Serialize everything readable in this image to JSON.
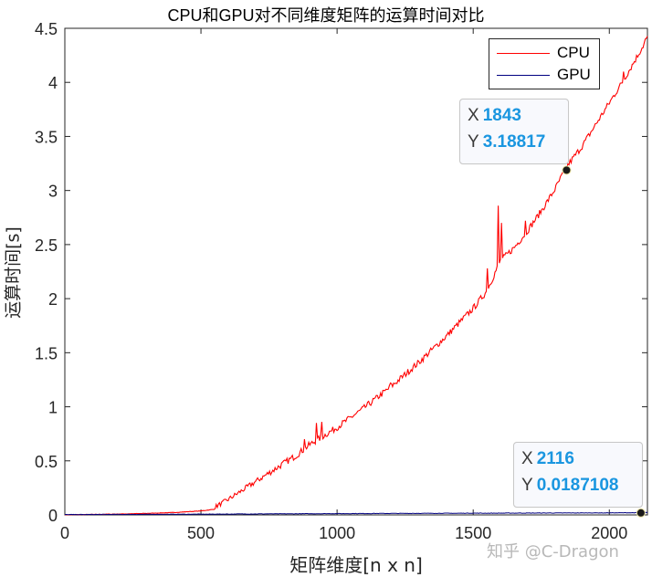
{
  "chart_data": {
    "type": "line",
    "title": "CPU和GPU对不同维度矩阵的运算时间对比",
    "xlabel": "矩阵维度[n x n]",
    "ylabel": "运算时间[s]",
    "xlim": [
      0,
      2140
    ],
    "ylim": [
      0,
      4.5
    ],
    "xticks": [
      0,
      500,
      1000,
      1500,
      2000
    ],
    "yticks": [
      0,
      0.5,
      1,
      1.5,
      2,
      2.5,
      3,
      3.5,
      4,
      4.5
    ],
    "xtick_labels": [
      "0",
      "500",
      "1000",
      "1500",
      "2000"
    ],
    "ytick_labels": [
      "0",
      "0.5",
      "1",
      "1.5",
      "2",
      "2.5",
      "3",
      "3.5",
      "4",
      "4.5"
    ],
    "grid": false,
    "legend_position": "upper right",
    "series": [
      {
        "name": "CPU",
        "color": "#ff0000",
        "x": [
          0,
          100,
          200,
          300,
          400,
          500,
          550,
          600,
          650,
          700,
          750,
          800,
          850,
          900,
          950,
          1000,
          1100,
          1200,
          1300,
          1400,
          1500,
          1550,
          1600,
          1650,
          1700,
          1750,
          1800,
          1843,
          1900,
          1950,
          2000,
          2050,
          2100,
          2140
        ],
        "y": [
          0.0,
          0.002,
          0.006,
          0.012,
          0.02,
          0.035,
          0.05,
          0.12,
          0.2,
          0.28,
          0.36,
          0.44,
          0.52,
          0.62,
          0.7,
          0.78,
          0.96,
          1.16,
          1.38,
          1.62,
          1.88,
          2.04,
          2.32,
          2.44,
          2.6,
          2.78,
          2.98,
          3.18817,
          3.38,
          3.58,
          3.78,
          3.98,
          4.2,
          4.38
        ],
        "spikes": [
          {
            "x": 575,
            "y": 0.12
          },
          {
            "x": 880,
            "y": 0.7
          },
          {
            "x": 925,
            "y": 0.85
          },
          {
            "x": 945,
            "y": 0.86
          },
          {
            "x": 1195,
            "y": 1.22
          },
          {
            "x": 1550,
            "y": 2.28
          },
          {
            "x": 1590,
            "y": 2.86
          },
          {
            "x": 1605,
            "y": 2.7
          },
          {
            "x": 1690,
            "y": 2.72
          },
          {
            "x": 2050,
            "y": 4.1
          },
          {
            "x": 2130,
            "y": 4.4
          }
        ]
      },
      {
        "name": "GPU",
        "color": "#000080",
        "x": [
          0,
          500,
          1000,
          1500,
          2000,
          2116,
          2140
        ],
        "y": [
          0.001,
          0.005,
          0.01,
          0.014,
          0.017,
          0.0187108,
          0.019
        ]
      }
    ],
    "datatips": [
      {
        "series": "CPU",
        "x": 1843,
        "y": 3.18817,
        "x_label": "X",
        "y_label": "Y",
        "x_text": "1843",
        "y_text": "3.18817"
      },
      {
        "series": "GPU",
        "x": 2116,
        "y": 0.0187108,
        "x_label": "X",
        "y_label": "Y",
        "x_text": "2116",
        "y_text": "0.0187108"
      }
    ]
  },
  "legend": {
    "items": [
      {
        "label": "CPU",
        "color": "#ff0000"
      },
      {
        "label": "GPU",
        "color": "#000080"
      }
    ]
  },
  "watermark": "知乎 @C-Dragon"
}
